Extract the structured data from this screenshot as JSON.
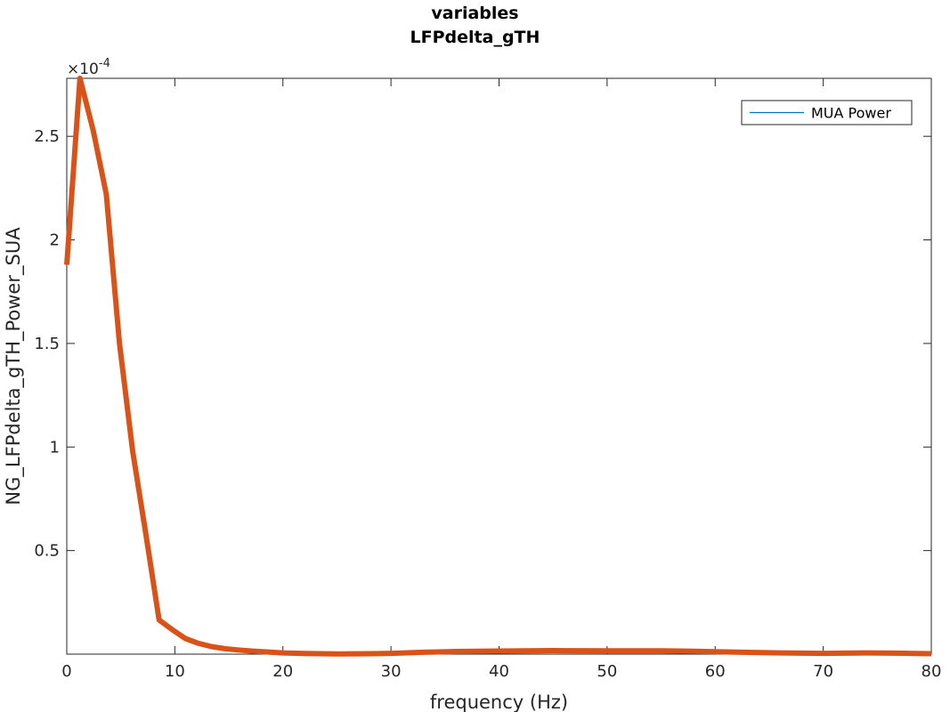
{
  "figure": {
    "title_line1": "variables",
    "title_line2": "LFPdelta_gTH"
  },
  "chart_data": {
    "type": "line",
    "title": "variables LFPdelta_gTH",
    "xlabel": "frequency (Hz)",
    "ylabel": "NG_LFPdelta_gTH_Power_SUA",
    "y_exponent_label": "×10",
    "y_exponent_power": "-4",
    "xlim": [
      0,
      80
    ],
    "ylim": [
      0,
      0.000278
    ],
    "x_ticks": [
      0,
      10,
      20,
      30,
      40,
      50,
      60,
      70,
      80
    ],
    "x_tick_labels": [
      "0",
      "10",
      "20",
      "30",
      "40",
      "50",
      "60",
      "70",
      "80"
    ],
    "y_ticks": [
      5e-05,
      0.0001,
      0.00015,
      0.0002,
      0.00025
    ],
    "y_tick_labels": [
      "0.5",
      "1",
      "1.5",
      "2",
      "2.5"
    ],
    "grid": false,
    "legend": {
      "position": "top-right",
      "entries": [
        "MUA Power"
      ]
    },
    "series": [
      {
        "name": "MUA Power",
        "legend_color": "#0072BD",
        "line_color": "#D95319",
        "x": [
          0,
          1.22,
          2.44,
          3.66,
          4.88,
          6.1,
          7.32,
          8.54,
          9.76,
          10.98,
          12.2,
          13.43,
          14.65,
          15.87,
          17.09,
          18.31,
          20,
          22,
          25,
          28,
          30,
          33,
          36,
          40,
          45,
          50,
          55,
          58,
          62,
          66,
          70,
          74,
          78,
          80
        ],
        "y": [
          0.000188,
          0.000278,
          0.000253,
          0.000222,
          0.00015,
          9.8e-05,
          5.8e-05,
          1.65e-05,
          1.18e-05,
          7.5e-06,
          5.2e-06,
          3.6e-06,
          2.6e-06,
          2e-06,
          1.5e-06,
          1.1e-06,
          6e-07,
          3e-07,
          1e-07,
          2e-07,
          4e-07,
          9e-07,
          1.3e-06,
          1.5e-06,
          1.7e-06,
          1.6e-06,
          1.6e-06,
          1.4e-06,
          1e-06,
          6e-07,
          4e-07,
          6e-07,
          4e-07,
          2e-07
        ]
      }
    ]
  }
}
